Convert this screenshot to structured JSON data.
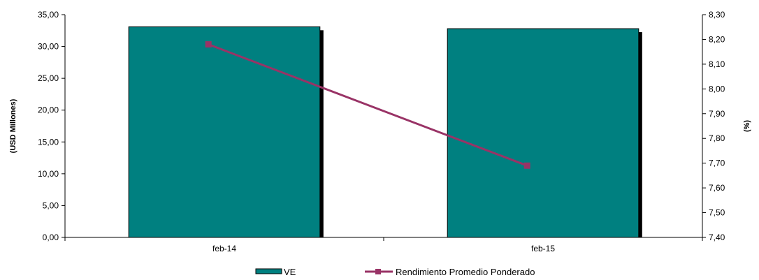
{
  "chart_data": {
    "type": "bar",
    "categories": [
      "feb-14",
      "feb-15"
    ],
    "series": [
      {
        "name": "VE",
        "type": "bar",
        "axis": "left",
        "values": [
          33.1,
          32.8
        ],
        "color": "#008080"
      },
      {
        "name": "Rendimiento Promedio Ponderado",
        "type": "line",
        "axis": "right",
        "values": [
          8.18,
          7.69
        ],
        "color": "#993366"
      }
    ],
    "ylabel": "(USD Millones)",
    "y2label": "(%)",
    "ylim": [
      0,
      35
    ],
    "y2lim": [
      7.4,
      8.3
    ],
    "yticks": [
      "0,00",
      "5,00",
      "10,00",
      "15,00",
      "20,00",
      "25,00",
      "30,00",
      "35,00"
    ],
    "y2ticks": [
      "7,40",
      "7,50",
      "7,60",
      "7,70",
      "7,80",
      "7,90",
      "8,00",
      "8,10",
      "8,20",
      "8,30"
    ],
    "grid": false,
    "legend_position": "bottom"
  }
}
